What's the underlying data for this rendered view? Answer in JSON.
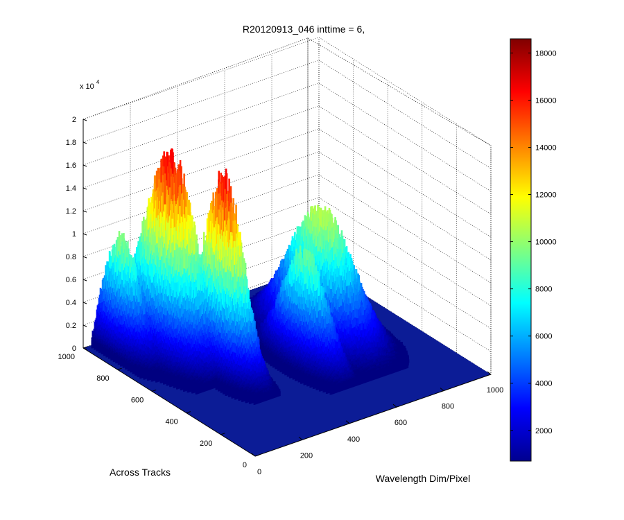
{
  "chart_data": {
    "type": "surface",
    "title": "R20120913_046 inttime = 6,",
    "xlabel": "Wavelength Dim/Pixel",
    "ylabel": "Across Tracks",
    "zlabel": "",
    "x_ticks": [
      "0",
      "200",
      "400",
      "600",
      "800",
      "1000"
    ],
    "y_ticks": [
      "0",
      "200",
      "400",
      "600",
      "800",
      "1000"
    ],
    "z_ticks": [
      "0",
      "0.2",
      "0.4",
      "0.6",
      "0.8",
      "1",
      "1.2",
      "1.4",
      "1.6",
      "1.8",
      "2"
    ],
    "z_multiplier": "x 10",
    "z_multiplier_exp": "4",
    "xlim": [
      0,
      1000
    ],
    "ylim": [
      0,
      1000
    ],
    "zlim": [
      0,
      20000
    ],
    "grid": true,
    "colormap": "jet",
    "colorbar": {
      "ticks": [
        "2000",
        "4000",
        "6000",
        "8000",
        "10000",
        "12000",
        "14000",
        "16000",
        "18000"
      ],
      "range": [
        700,
        18600
      ],
      "placement": "right"
    },
    "peaks": [
      {
        "x": 200,
        "y": 780,
        "z": 18500
      },
      {
        "x": 270,
        "y": 560,
        "z": 18500
      },
      {
        "x": 180,
        "y": 900,
        "z": 11500
      },
      {
        "x": 700,
        "y": 620,
        "z": 12000
      },
      {
        "x": 550,
        "y": 420,
        "z": 10500
      }
    ]
  }
}
